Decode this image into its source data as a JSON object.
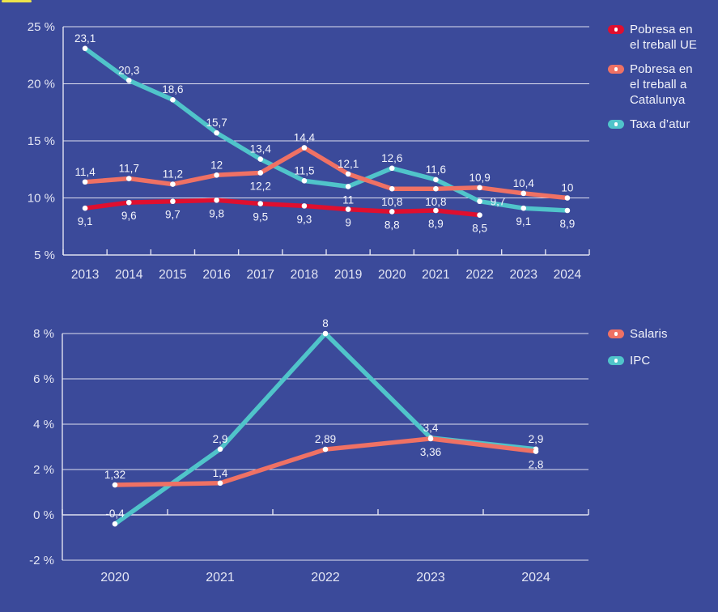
{
  "page": {
    "background_color": "#3B4A9A",
    "accent_bar_color": "#EDE44C"
  },
  "colors": {
    "grid": "#E8E9F5",
    "axis_text": "#E4E6F4",
    "value_text": "#F4F5FC",
    "red": "#DF0F2F",
    "salmon": "#EF7164",
    "teal": "#50C4CA",
    "point": "#FFFFFF"
  },
  "chart_data": [
    {
      "type": "line",
      "title": "",
      "categories": [
        "2013",
        "2014",
        "2015",
        "2016",
        "2017",
        "2018",
        "2019",
        "2020",
        "2021",
        "2022",
        "2023",
        "2024"
      ],
      "y_axis": {
        "min": 5,
        "max": 25,
        "step": 5,
        "unit": "%",
        "tick_labels": [
          "25 %",
          "20 %",
          "15 %",
          "10 %",
          "5 %"
        ]
      },
      "x_axis_at": 5,
      "grid": true,
      "legend_position": "right",
      "series": [
        {
          "name": "Pobresa en el treball UE",
          "legend_lines": [
            "Pobresa en",
            "el treball UE"
          ],
          "color": "#DF0F2F",
          "z": 3,
          "values": [
            9.1,
            9.6,
            9.7,
            9.8,
            9.5,
            9.3,
            9,
            8.8,
            8.9,
            8.5,
            null,
            null
          ],
          "labels": [
            "9,1",
            "9,6",
            "9,7",
            "9,8",
            "9,5",
            "9,3",
            "9",
            "8,8",
            "8,9",
            "8,5",
            null,
            null
          ],
          "label_pos": [
            "below",
            "below",
            "below",
            "below",
            "below",
            "below",
            "below",
            "below",
            "below",
            "below",
            null,
            null
          ]
        },
        {
          "name": "Pobresa en el treball a Catalunya",
          "legend_lines": [
            "Pobresa en",
            "el treball a",
            "Catalunya"
          ],
          "color": "#EF7164",
          "z": 2,
          "values": [
            11.4,
            11.7,
            11.2,
            12,
            12.2,
            14.4,
            12.1,
            10.8,
            10.8,
            10.9,
            10.4,
            10
          ],
          "labels": [
            "11,4",
            "11,7",
            "11,2",
            "12",
            "12,2",
            "14,4",
            "12,1",
            "10,8",
            "10,8",
            "10,9",
            "10,4",
            "10"
          ],
          "label_pos": [
            "above",
            "above",
            "above",
            "above",
            "below",
            "above",
            "above",
            "below",
            "below",
            "above",
            "above",
            "above"
          ]
        },
        {
          "name": "Taxa d’atur",
          "legend_lines": [
            "Taxa d’atur"
          ],
          "color": "#50C4CA",
          "z": 1,
          "values": [
            23.1,
            20.3,
            18.6,
            15.7,
            13.4,
            11.5,
            11,
            12.6,
            11.6,
            9.7,
            9.1,
            8.9
          ],
          "labels": [
            "23,1",
            "20,3",
            "18,6",
            "15,7",
            "13,4",
            "11,5",
            "11",
            "12,6",
            "11,6",
            "9,7",
            "9,1",
            "8,9"
          ],
          "label_pos": [
            "above",
            "above",
            "above",
            "above",
            "above",
            "above",
            "below",
            "above",
            "above",
            "right",
            "below",
            "below"
          ]
        }
      ]
    },
    {
      "type": "line",
      "title": "",
      "categories": [
        "2020",
        "2021",
        "2022",
        "2023",
        "2024"
      ],
      "y_axis": {
        "min": -2,
        "max": 8,
        "step": 2,
        "unit": "%",
        "tick_labels": [
          "8 %",
          "6 %",
          "4 %",
          "2 %",
          "0 %",
          "-2 %"
        ]
      },
      "x_axis_at": 0,
      "grid": true,
      "legend_position": "right",
      "series": [
        {
          "name": "Salaris",
          "legend_lines": [
            "Salaris"
          ],
          "color": "#EF7164",
          "z": 2,
          "values": [
            1.32,
            1.4,
            2.89,
            3.36,
            2.8
          ],
          "labels": [
            "1,32",
            "1,4",
            "2,89",
            "3,36",
            "2,8"
          ],
          "label_pos": [
            "above",
            "above",
            "above",
            "below",
            "below"
          ]
        },
        {
          "name": "IPC",
          "legend_lines": [
            "IPC"
          ],
          "color": "#50C4CA",
          "z": 1,
          "values": [
            -0.4,
            2.9,
            8,
            3.4,
            2.9
          ],
          "labels": [
            "-0,4",
            "2,9",
            "8",
            "3,4",
            "2,9"
          ],
          "label_pos": [
            "above",
            "above",
            "above",
            "above",
            "above"
          ]
        }
      ]
    }
  ]
}
